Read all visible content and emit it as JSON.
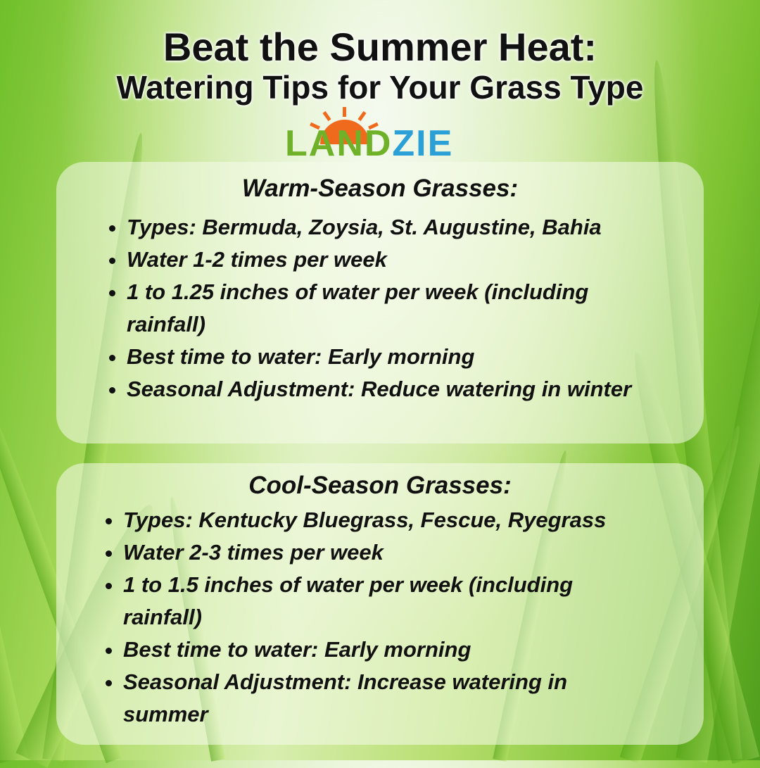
{
  "header": {
    "title_line1": "Beat the Summer Heat:",
    "title_line2": "Watering Tips for Your Grass Type"
  },
  "logo": {
    "text_green": "LAND",
    "text_blue": "ZIE",
    "colors": {
      "green": "#6fb22a",
      "blue": "#2aa0d6",
      "sun": "#f06a1e"
    }
  },
  "warm": {
    "heading": "Warm-Season Grasses:",
    "items": [
      "Types: Bermuda, Zoysia, St. Augustine, Bahia",
      "Water 1-2 times per week",
      "1 to 1.25 inches of water per week (including rainfall)",
      "Best time to water: Early morning",
      "Seasonal Adjustment: Reduce watering in winter"
    ]
  },
  "cool": {
    "heading": "Cool-Season Grasses:",
    "items": [
      "Types: Kentucky Bluegrass, Fescue, Ryegrass",
      "Water 2-3 times per week",
      "1 to 1.5 inches of water per week (including rainfall)",
      "Best time to water: Early morning",
      "Seasonal Adjustment: Increase watering in summer"
    ]
  }
}
